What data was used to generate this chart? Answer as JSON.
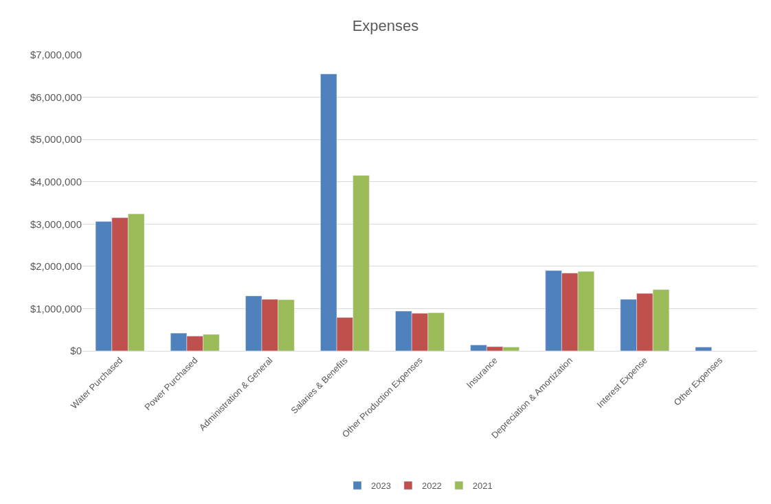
{
  "chart_data": {
    "type": "bar",
    "title": "Expenses",
    "categories": [
      "Water Purchased",
      "Power Purchased",
      "Administration & General",
      "Salaries & Benefits",
      "Other Production Expenses",
      "Insurance",
      "Depreciation & Amortization",
      "Interest Expense",
      "Other Expenses"
    ],
    "series": [
      {
        "name": "2023",
        "color": "#4f81bd",
        "values": [
          3060000,
          420000,
          1300000,
          6550000,
          940000,
          140000,
          1900000,
          1220000,
          90000
        ]
      },
      {
        "name": "2022",
        "color": "#c0504d",
        "values": [
          3150000,
          350000,
          1220000,
          790000,
          890000,
          100000,
          1840000,
          1360000,
          null
        ]
      },
      {
        "name": "2021",
        "color": "#9bbb59",
        "values": [
          3240000,
          390000,
          1210000,
          4150000,
          900000,
          90000,
          1880000,
          1450000,
          null
        ]
      }
    ],
    "ylim": [
      0,
      7000000
    ],
    "yticks": [
      {
        "value": 0,
        "label": "$0"
      },
      {
        "value": 1000000,
        "label": "$1,000,000"
      },
      {
        "value": 2000000,
        "label": "$2,000,000"
      },
      {
        "value": 3000000,
        "label": "$3,000,000"
      },
      {
        "value": 4000000,
        "label": "$4,000,000"
      },
      {
        "value": 5000000,
        "label": "$5,000,000"
      },
      {
        "value": 6000000,
        "label": "$6,000,000"
      },
      {
        "value": 7000000,
        "label": "$7,000,000"
      }
    ],
    "grid": "y",
    "legend": "bottom"
  }
}
